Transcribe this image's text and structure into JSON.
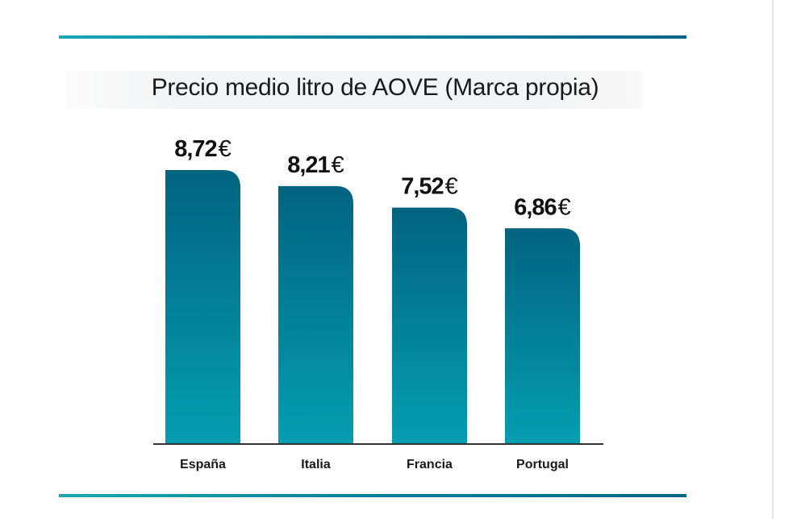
{
  "chart_data": {
    "type": "bar",
    "title": "Precio medio litro de AOVE (Marca propia)",
    "categories": [
      "España",
      "Italia",
      "Francia",
      "Portugal"
    ],
    "values": [
      8.72,
      8.21,
      7.52,
      6.86
    ],
    "value_labels": [
      "8,72",
      "8,21",
      "7,52",
      "6,86"
    ],
    "currency": "€",
    "xlabel": "",
    "ylabel": "",
    "ylim": [
      0,
      8.72
    ],
    "grid": false,
    "colors": {
      "bar_top": "#02637f",
      "bar_bottom": "#049eb0",
      "axis": "#333333"
    }
  }
}
